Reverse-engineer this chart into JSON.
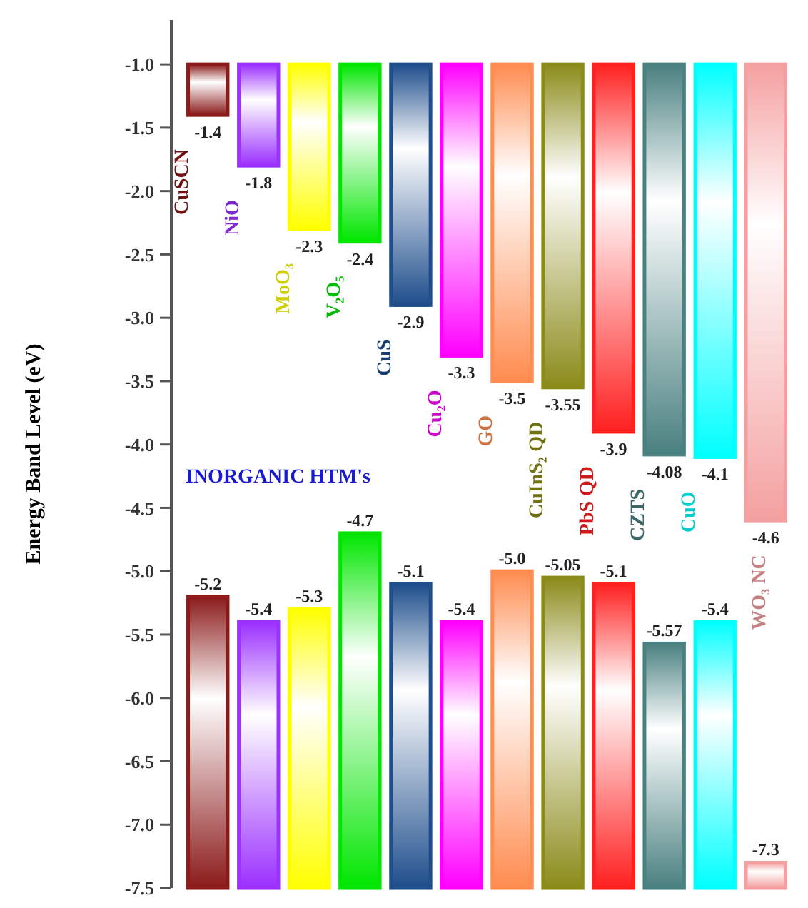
{
  "chart_data": {
    "type": "bar",
    "ylabel": "Energy Band Level (eV)",
    "categories": [
      "CuSCN",
      "NiO",
      "MoO₃",
      "V₂O₅",
      "CuS",
      "Cu₂O",
      "GO",
      "CuInS₂ QD",
      "PbS QD",
      "CZTS",
      "CuO",
      "WO₃ NC"
    ],
    "series": [
      {
        "colors": [
          "#8b1a1a",
          "#9b30ff",
          "#ffff00",
          "#00e600",
          "#1f4e8c",
          "#ff00ff",
          "#ff8c50",
          "#8b8b1a",
          "#ff2020",
          "#4a8080",
          "#00ffff",
          "#f4a0a0"
        ],
        "base": [
          -1.0,
          -1.0,
          -1.0,
          -1.0,
          -1.0,
          -1.0,
          -1.0,
          -1.0,
          -1.0,
          -1.0,
          -1.0,
          -1.0
        ],
        "values": [
          -0.4,
          -0.8,
          -1.3,
          -1.4,
          -1.9,
          -2.3,
          -2.5,
          -2.55,
          -2.9,
          -3.08,
          -3.1,
          -3.6
        ],
        "value_labels": [
          "-1.4",
          "-1.8",
          "-2.3",
          "-2.4",
          "-2.9",
          "-3.3",
          "-3.5",
          "-3.55",
          "-3.9",
          "-4.08",
          "-4.1",
          "-4.6"
        ]
      },
      {
        "colors": [
          "#8b1a1a",
          "#9b30ff",
          "#ffff00",
          "#00e600",
          "#1f4e8c",
          "#ff00ff",
          "#ff8c50",
          "#8b8b1a",
          "#ff2020",
          "#4a8080",
          "#00ffff",
          "#f4a0a0"
        ],
        "base": [
          -7.5,
          -7.5,
          -7.5,
          -7.5,
          -7.5,
          -7.5,
          -7.5,
          -7.5,
          -7.5,
          -7.5,
          -7.5,
          -7.5
        ],
        "values": [
          2.3,
          2.1,
          2.2,
          2.8,
          2.4,
          2.1,
          2.5,
          2.45,
          2.4,
          1.93,
          2.1,
          0.2
        ],
        "value_labels": [
          "-5.2",
          "-5.4",
          "-5.3",
          "-4.7",
          "-5.1",
          "-5.4",
          "-5.0",
          "-5.05",
          "-5.1",
          "-5.57",
          "-5.4",
          "-7.3"
        ]
      }
    ],
    "ylim": [
      -7.5,
      -0.65
    ],
    "yticks": [
      {
        "value": -1,
        "label": "-1.0"
      },
      -1.5,
      {
        "value": -2,
        "label": "-2.0"
      },
      -2.5,
      {
        "value": -3,
        "label": "-3.0"
      },
      -3.5,
      {
        "value": -4,
        "label": "-4.0"
      },
      -4.5,
      {
        "value": -5,
        "label": "-5.0"
      },
      -5.5,
      {
        "value": -6,
        "label": "-6.0"
      },
      -6.5,
      {
        "value": -7,
        "label": "-7.0"
      },
      -7.5
    ],
    "annotations": [
      "INORGANIC HTM's"
    ]
  }
}
